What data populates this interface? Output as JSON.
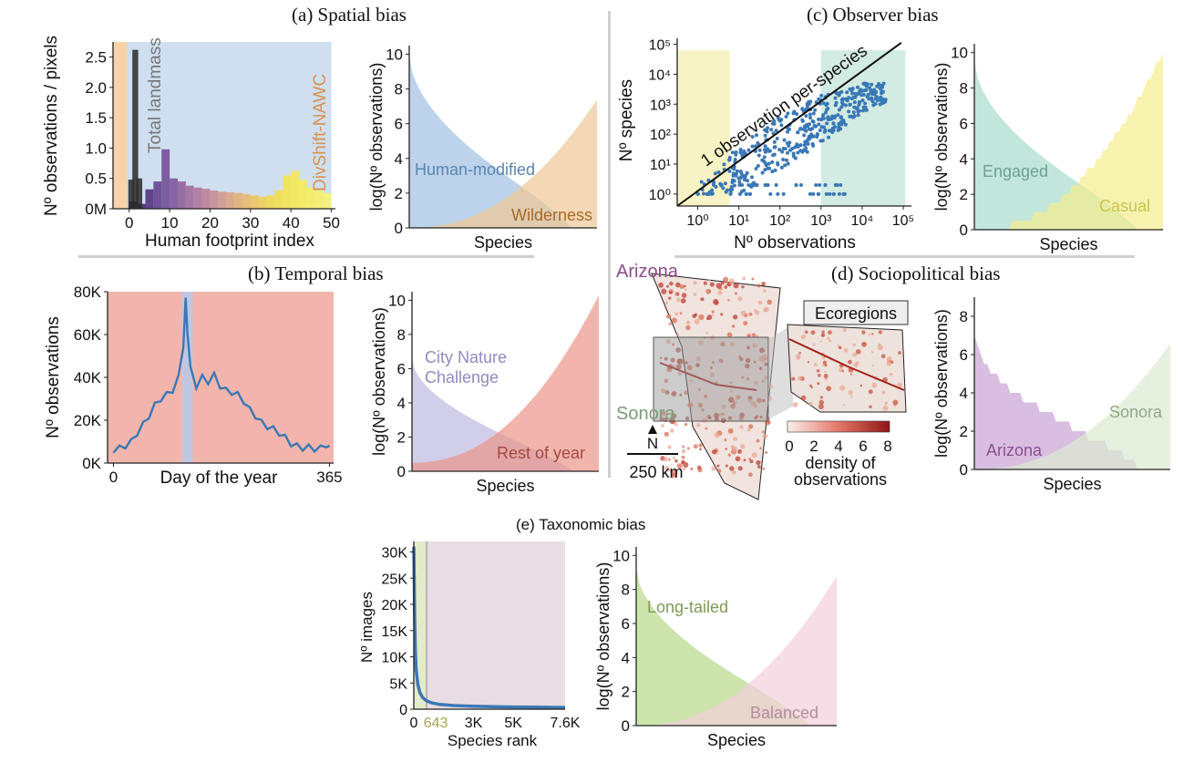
{
  "titles": {
    "a": "(a) Spatial bias",
    "b": "(b) Temporal bias",
    "c": "(c) Observer bias",
    "d": "(d) Sociopolitical bias",
    "e": "(e) Taxonomic bias"
  },
  "colors": {
    "blue": "#3a78b5",
    "lightblue": "#c9dcee",
    "orange": "#e6a85c",
    "salmon": "#f2b5ae",
    "red": "#e07a6e",
    "lavender": "#b3b0d6",
    "teal": "#8fd3c4",
    "yellow": "#f2ea6c",
    "purple": "#b27cc0",
    "sage": "#cfe4c6",
    "green": "#9ccc5a",
    "pink": "#f1c6d2"
  },
  "chart_data": [
    {
      "id": "a-hist",
      "type": "bar",
      "xlabel": "Human footprint index",
      "ylabel": "Nº observations / pixels",
      "xlim": [
        -4,
        51
      ],
      "ylim": [
        0,
        2.75
      ],
      "xticks": [
        "0",
        "10",
        "20",
        "30",
        "40",
        "50"
      ],
      "xtick_values": [
        0,
        10,
        20,
        30,
        40,
        50
      ],
      "yticks": [
        "0M",
        "0.5",
        "1.0",
        "1.5",
        "2.0",
        "2.5"
      ],
      "ytick_values": [
        0,
        0.5,
        1.0,
        1.5,
        2.0,
        2.5
      ],
      "regions": [
        {
          "from": -4,
          "to": -0.5,
          "color": "#f6d3a8"
        },
        {
          "from": -0.5,
          "to": 50,
          "color": "#cfdff0"
        }
      ],
      "landmass": {
        "x": [
          0,
          1,
          2
        ],
        "values": [
          0.48,
          2.62,
          0.5
        ],
        "color": "#2a2a2a"
      },
      "bins": [
        0,
        2,
        4,
        6,
        8,
        10,
        12,
        14,
        16,
        18,
        20,
        22,
        24,
        26,
        28,
        30,
        32,
        34,
        36,
        38,
        40,
        42,
        44,
        46,
        48
      ],
      "values": [
        0.12,
        0.08,
        0.32,
        0.45,
        0.98,
        0.5,
        0.45,
        0.38,
        0.35,
        0.33,
        0.3,
        0.28,
        0.27,
        0.26,
        0.24,
        0.22,
        0.2,
        0.22,
        0.3,
        0.55,
        0.62,
        0.48,
        0.35,
        0.3,
        0.26
      ],
      "annotations": [
        "Total landmass",
        "DivShift-NAWC"
      ]
    },
    {
      "id": "a-rank",
      "type": "area",
      "xlabel": "Species",
      "ylabel": "log(Nº observations)",
      "ylim": [
        0,
        10.5
      ],
      "yticks": [
        "0",
        "2",
        "4",
        "6",
        "8",
        "10"
      ],
      "ytick_values": [
        0,
        2,
        4,
        6,
        8,
        10
      ],
      "series": [
        {
          "name": "Human-modified",
          "start": 10.0,
          "end": 0.0,
          "curve": "down",
          "color": "#9fc0e2"
        },
        {
          "name": "Wilderness",
          "start": 0.0,
          "end": 7.4,
          "curve": "up",
          "color": "#efc796"
        }
      ]
    },
    {
      "id": "b-time",
      "type": "line",
      "xlabel": "Day of the year",
      "ylabel": "Nº observations",
      "xlim": [
        -10,
        372
      ],
      "ylim": [
        0,
        80000
      ],
      "xticks": [
        "0",
        "365"
      ],
      "xtick_values": [
        0,
        365
      ],
      "yticks": [
        "0K",
        "20K",
        "40K",
        "60K",
        "80K"
      ],
      "ytick_values": [
        0,
        20000,
        40000,
        60000,
        80000
      ],
      "highlight": {
        "from": 116,
        "to": 134
      },
      "x": [
        0,
        10,
        20,
        30,
        40,
        50,
        60,
        70,
        80,
        90,
        100,
        110,
        118,
        122,
        125,
        130,
        140,
        150,
        160,
        170,
        180,
        190,
        200,
        210,
        220,
        230,
        240,
        250,
        260,
        270,
        280,
        290,
        300,
        310,
        320,
        330,
        340,
        350,
        360,
        365
      ],
      "values": [
        6000,
        7000,
        8000,
        10000,
        14000,
        18000,
        22000,
        27000,
        30000,
        32000,
        34000,
        40000,
        55000,
        76000,
        62000,
        44000,
        36000,
        40000,
        38000,
        41000,
        36000,
        34000,
        33000,
        32000,
        29000,
        25000,
        22000,
        19000,
        17000,
        16000,
        14000,
        12000,
        9000,
        8000,
        7000,
        7500,
        6500,
        7000,
        8500,
        7000
      ]
    },
    {
      "id": "b-rank",
      "type": "area",
      "xlabel": "Species",
      "ylabel": "log(Nº observations)",
      "ylim": [
        0,
        10.5
      ],
      "yticks": [
        "0",
        "2",
        "4",
        "6",
        "8",
        "10"
      ],
      "ytick_values": [
        0,
        2,
        4,
        6,
        8,
        10
      ],
      "series": [
        {
          "name": "City Nature Challenge",
          "lines": [
            "City Nature",
            "Challenge"
          ],
          "start": 6.6,
          "end": 0.0,
          "curve": "down",
          "color": "#bdb9e0"
        },
        {
          "name": "Rest of year",
          "start": 0.5,
          "end": 10.3,
          "curve": "up",
          "color": "#eb958a"
        }
      ]
    },
    {
      "id": "c-scatter",
      "type": "scatter",
      "xlabel": "Nº observations",
      "ylabel": "Nº species",
      "log": true,
      "xlim": [
        -0.5,
        5.2
      ],
      "ylim": [
        -0.4,
        5.2
      ],
      "xticks": [
        "10⁰",
        "10¹",
        "10²",
        "10³",
        "10⁴",
        "10⁵"
      ],
      "xtick_values": [
        0,
        1,
        2,
        3,
        4,
        5
      ],
      "yticks": [
        "10⁰",
        "10¹",
        "10²",
        "10³",
        "10⁴",
        "10⁵"
      ],
      "ytick_values": [
        0,
        1,
        2,
        3,
        4,
        5
      ],
      "regions": [
        {
          "from": -0.5,
          "to": 0.78,
          "color": "#f7f3c4"
        },
        {
          "from": 3.0,
          "to": 5.05,
          "color": "#d2ebe3"
        }
      ],
      "reference_line": "1 observation per-species",
      "trend": [
        {
          "x": 0.0,
          "y": 0.0,
          "spread": 0.3
        },
        {
          "x": 1.0,
          "y": 0.8,
          "spread": 0.8
        },
        {
          "x": 2.0,
          "y": 1.7,
          "spread": 0.9
        },
        {
          "x": 3.0,
          "y": 2.5,
          "spread": 0.8
        },
        {
          "x": 4.0,
          "y": 3.2,
          "spread": 0.5
        },
        {
          "x": 4.6,
          "y": 3.4,
          "spread": 0.3
        }
      ]
    },
    {
      "id": "c-rank",
      "type": "area",
      "xlabel": "Species",
      "ylabel": "log(Nº observations)",
      "ylim": [
        0,
        10.5
      ],
      "yticks": [
        "0",
        "2",
        "4",
        "6",
        "8",
        "10"
      ],
      "ytick_values": [
        0,
        2,
        4,
        6,
        8,
        10
      ],
      "series": [
        {
          "name": "Engaged",
          "start": 9.6,
          "end": 0.0,
          "curve": "down",
          "color": "#a8dccd"
        },
        {
          "name": "Casual",
          "start": 0.0,
          "end": 10.0,
          "curve": "up",
          "color": "#f4ed8c",
          "stepped": true
        }
      ]
    },
    {
      "id": "d-rank",
      "type": "area",
      "xlabel": "Species",
      "ylabel": "log(Nº observations)",
      "ylim": [
        0,
        9
      ],
      "yticks": [
        "0",
        "2",
        "4",
        "6",
        "8"
      ],
      "ytick_values": [
        0,
        2,
        4,
        6,
        8
      ],
      "series": [
        {
          "name": "Arizona",
          "start": 7.0,
          "end": 0.0,
          "curve": "down",
          "color": "#c9a2d4",
          "stepped": true
        },
        {
          "name": "Sonora",
          "start": 0.0,
          "end": 6.6,
          "curve": "up",
          "color": "#dbead2"
        }
      ]
    },
    {
      "id": "e-rank-images",
      "type": "line",
      "xlabel": "Species rank",
      "ylabel": "Nº images",
      "xlim": [
        0,
        7600
      ],
      "ylim": [
        0,
        32000
      ],
      "xticks": [
        "0",
        "643",
        "3K",
        "5K",
        "7.6K"
      ],
      "xtick_values": [
        0,
        643,
        3000,
        5000,
        7600
      ],
      "yticks": [
        "0",
        "5K",
        "10K",
        "15K",
        "20K",
        "25K",
        "30K"
      ],
      "ytick_values": [
        0,
        5000,
        10000,
        15000,
        20000,
        25000,
        30000
      ],
      "regions": [
        {
          "from": 0,
          "to": 643,
          "color": "#e3ebcb"
        },
        {
          "from": 643,
          "to": 7600,
          "color": "#e8dde3"
        }
      ],
      "x": [
        1,
        40,
        80,
        120,
        200,
        300,
        450,
        643,
        900,
        1300,
        2000,
        3000,
        4000,
        5000,
        6000,
        7000,
        7600
      ],
      "values": [
        31000,
        18000,
        11000,
        7500,
        4800,
        3200,
        2200,
        1600,
        1200,
        900,
        700,
        550,
        480,
        420,
        380,
        350,
        330
      ]
    },
    {
      "id": "e-rank",
      "type": "area",
      "xlabel": "Species",
      "ylabel": "log(Nº observations)",
      "ylim": [
        0,
        10.5
      ],
      "yticks": [
        "0",
        "2",
        "4",
        "6",
        "8",
        "10"
      ],
      "ytick_values": [
        0,
        2,
        4,
        6,
        8,
        10
      ],
      "series": [
        {
          "name": "Long-tailed",
          "start": 9.3,
          "end": 0.0,
          "curve": "down",
          "color": "#b8d98a"
        },
        {
          "name": "Balanced",
          "start": 0.0,
          "end": 8.8,
          "curve": "up",
          "color": "#f3cfdc"
        }
      ]
    }
  ],
  "map": {
    "arizona_label": "Arizona",
    "sonora_label": "Sonora",
    "inset_label": "Ecoregions",
    "north_label": "N",
    "scale_label": "250 km",
    "colorbar_ticks": [
      "0",
      "2",
      "4",
      "6",
      "8"
    ],
    "colorbar_title_lines": [
      "density of",
      "observations"
    ]
  }
}
